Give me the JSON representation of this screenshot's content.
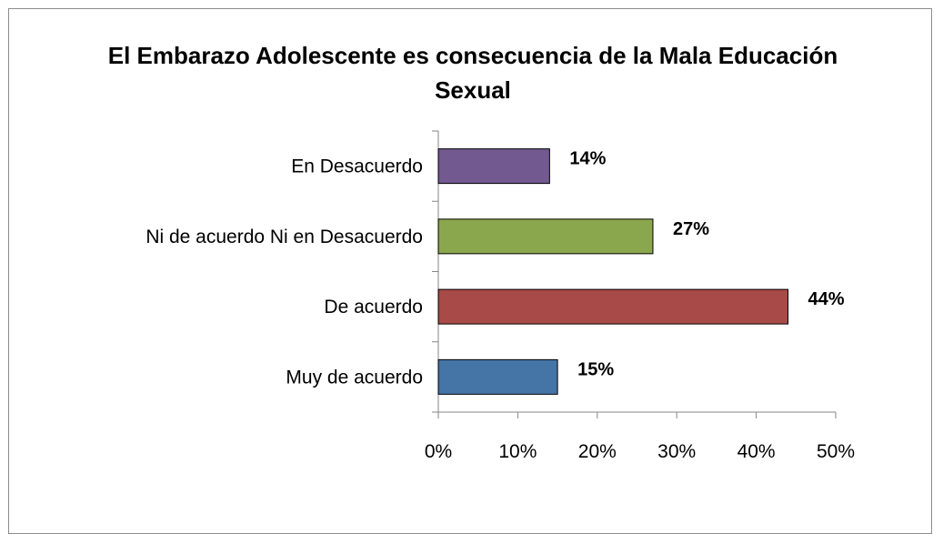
{
  "chart_data": {
    "type": "bar",
    "orientation": "horizontal",
    "title": "El Embarazo Adolescente es consecuencia de la Mala Educación Sexual",
    "categories": [
      "En Desacuerdo",
      "Ni de acuerdo Ni en Desacuerdo",
      "De acuerdo",
      "Muy de acuerdo"
    ],
    "values": [
      14,
      27,
      44,
      15
    ],
    "data_labels": [
      "14%",
      "27%",
      "44%",
      "15%"
    ],
    "colors": [
      "#725990",
      "#8ba74e",
      "#a84a48",
      "#4574a6"
    ],
    "xlim": [
      0,
      50
    ],
    "xticks": [
      "0%",
      "10%",
      "20%",
      "30%",
      "40%",
      "50%"
    ],
    "grid": false,
    "legend": "none"
  }
}
